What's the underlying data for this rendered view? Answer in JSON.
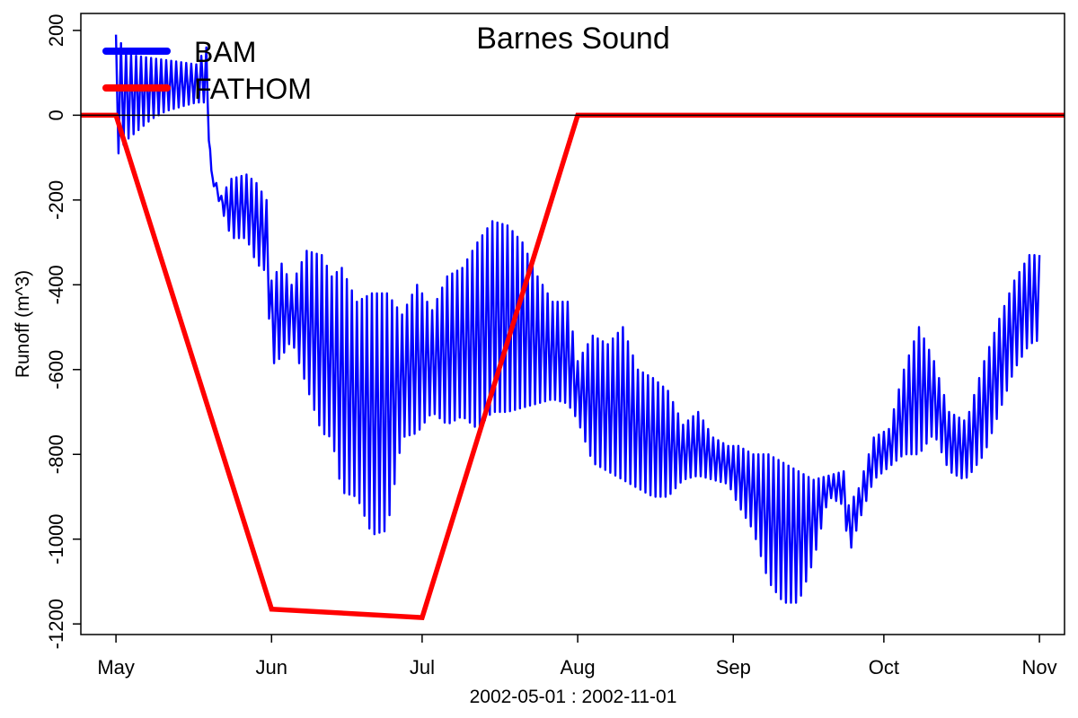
{
  "chart_data": {
    "type": "line",
    "title": "Barnes Sound",
    "xlabel": "2002-05-01 : 2002-11-01",
    "ylabel": "Runoff (m^3)",
    "x_tick_labels": [
      "May",
      "Jun",
      "Jul",
      "Aug",
      "Sep",
      "Oct",
      "Nov"
    ],
    "y_ticks": [
      -1200,
      -1000,
      -800,
      -600,
      -400,
      -200,
      0,
      200
    ],
    "y_tick_labels": [
      "-1200",
      "-1000",
      "-800",
      "-600",
      "-400",
      "-200",
      "0",
      "200"
    ],
    "xlim": [
      "2002-04-24",
      "2002-11-06"
    ],
    "ylim": [
      -1225,
      240
    ],
    "grid": false,
    "legend_position": "top-left",
    "reference_line": 0,
    "series": [
      {
        "name": "BAM",
        "color": "#0000ff",
        "style": "line",
        "note_envelope": "oscillating series; values give daily-ish upper and lower envelope",
        "x": [
          "2002-05-01",
          "2002-05-03",
          "2002-05-05",
          "2002-05-08",
          "2002-05-11",
          "2002-05-14",
          "2002-05-17",
          "2002-05-19",
          "2002-05-20",
          "2002-05-22",
          "2002-05-24",
          "2002-05-27",
          "2002-05-29",
          "2002-05-31",
          "2002-06-01",
          "2002-06-03",
          "2002-06-05",
          "2002-06-08",
          "2002-06-11",
          "2002-06-13",
          "2002-06-15",
          "2002-06-18",
          "2002-06-21",
          "2002-06-24",
          "2002-06-27",
          "2002-06-30",
          "2002-07-03",
          "2002-07-06",
          "2002-07-09",
          "2002-07-12",
          "2002-07-15",
          "2002-07-18",
          "2002-07-21",
          "2002-07-24",
          "2002-07-27",
          "2002-07-30",
          "2002-08-01",
          "2002-08-04",
          "2002-08-07",
          "2002-08-10",
          "2002-08-13",
          "2002-08-16",
          "2002-08-19",
          "2002-08-22",
          "2002-08-25",
          "2002-08-28",
          "2002-08-31",
          "2002-09-02",
          "2002-09-05",
          "2002-09-08",
          "2002-09-11",
          "2002-09-14",
          "2002-09-17",
          "2002-09-20",
          "2002-09-23",
          "2002-09-24",
          "2002-09-26",
          "2002-09-29",
          "2002-10-02",
          "2002-10-05",
          "2002-10-08",
          "2002-10-11",
          "2002-10-14",
          "2002-10-17",
          "2002-10-18",
          "2002-10-21",
          "2002-10-24",
          "2002-10-27",
          "2002-10-30",
          "2002-11-01"
        ],
        "upper": [
          190,
          150,
          140,
          135,
          130,
          125,
          120,
          160,
          -130,
          -190,
          -150,
          -140,
          -160,
          -200,
          -390,
          -350,
          -400,
          -320,
          -330,
          -380,
          -360,
          -440,
          -420,
          -420,
          -470,
          -400,
          -460,
          -380,
          -360,
          -300,
          -250,
          -260,
          -300,
          -380,
          -440,
          -440,
          -580,
          -520,
          -540,
          -500,
          -600,
          -620,
          -650,
          -730,
          -700,
          -760,
          -780,
          -780,
          -800,
          -800,
          -820,
          -840,
          -860,
          -850,
          -840,
          -920,
          -880,
          -760,
          -740,
          -600,
          -500,
          -580,
          -700,
          -720,
          -700,
          -580,
          -480,
          -390,
          -330,
          -330
        ],
        "lower": [
          -100,
          -60,
          -40,
          -10,
          10,
          20,
          30,
          30,
          -150,
          -220,
          -290,
          -290,
          -350,
          -370,
          -590,
          -570,
          -530,
          -640,
          -750,
          -760,
          -890,
          -900,
          -990,
          -980,
          -760,
          -750,
          -700,
          -730,
          -710,
          -740,
          -700,
          -700,
          -690,
          -680,
          -670,
          -680,
          -720,
          -820,
          -840,
          -860,
          -880,
          -900,
          -900,
          -860,
          -850,
          -860,
          -870,
          -920,
          -980,
          -1100,
          -1150,
          -1150,
          -1050,
          -900,
          -920,
          -1040,
          -960,
          -860,
          -830,
          -800,
          -800,
          -750,
          -840,
          -860,
          -850,
          -800,
          -700,
          -600,
          -540,
          -530
        ]
      },
      {
        "name": "FATHOM",
        "color": "#ff0000",
        "style": "line",
        "x": [
          "2002-04-24",
          "2002-05-01",
          "2002-06-01",
          "2002-07-01",
          "2002-08-01",
          "2002-11-06"
        ],
        "values": [
          0,
          0,
          -1165,
          -1185,
          0,
          0
        ]
      }
    ]
  }
}
